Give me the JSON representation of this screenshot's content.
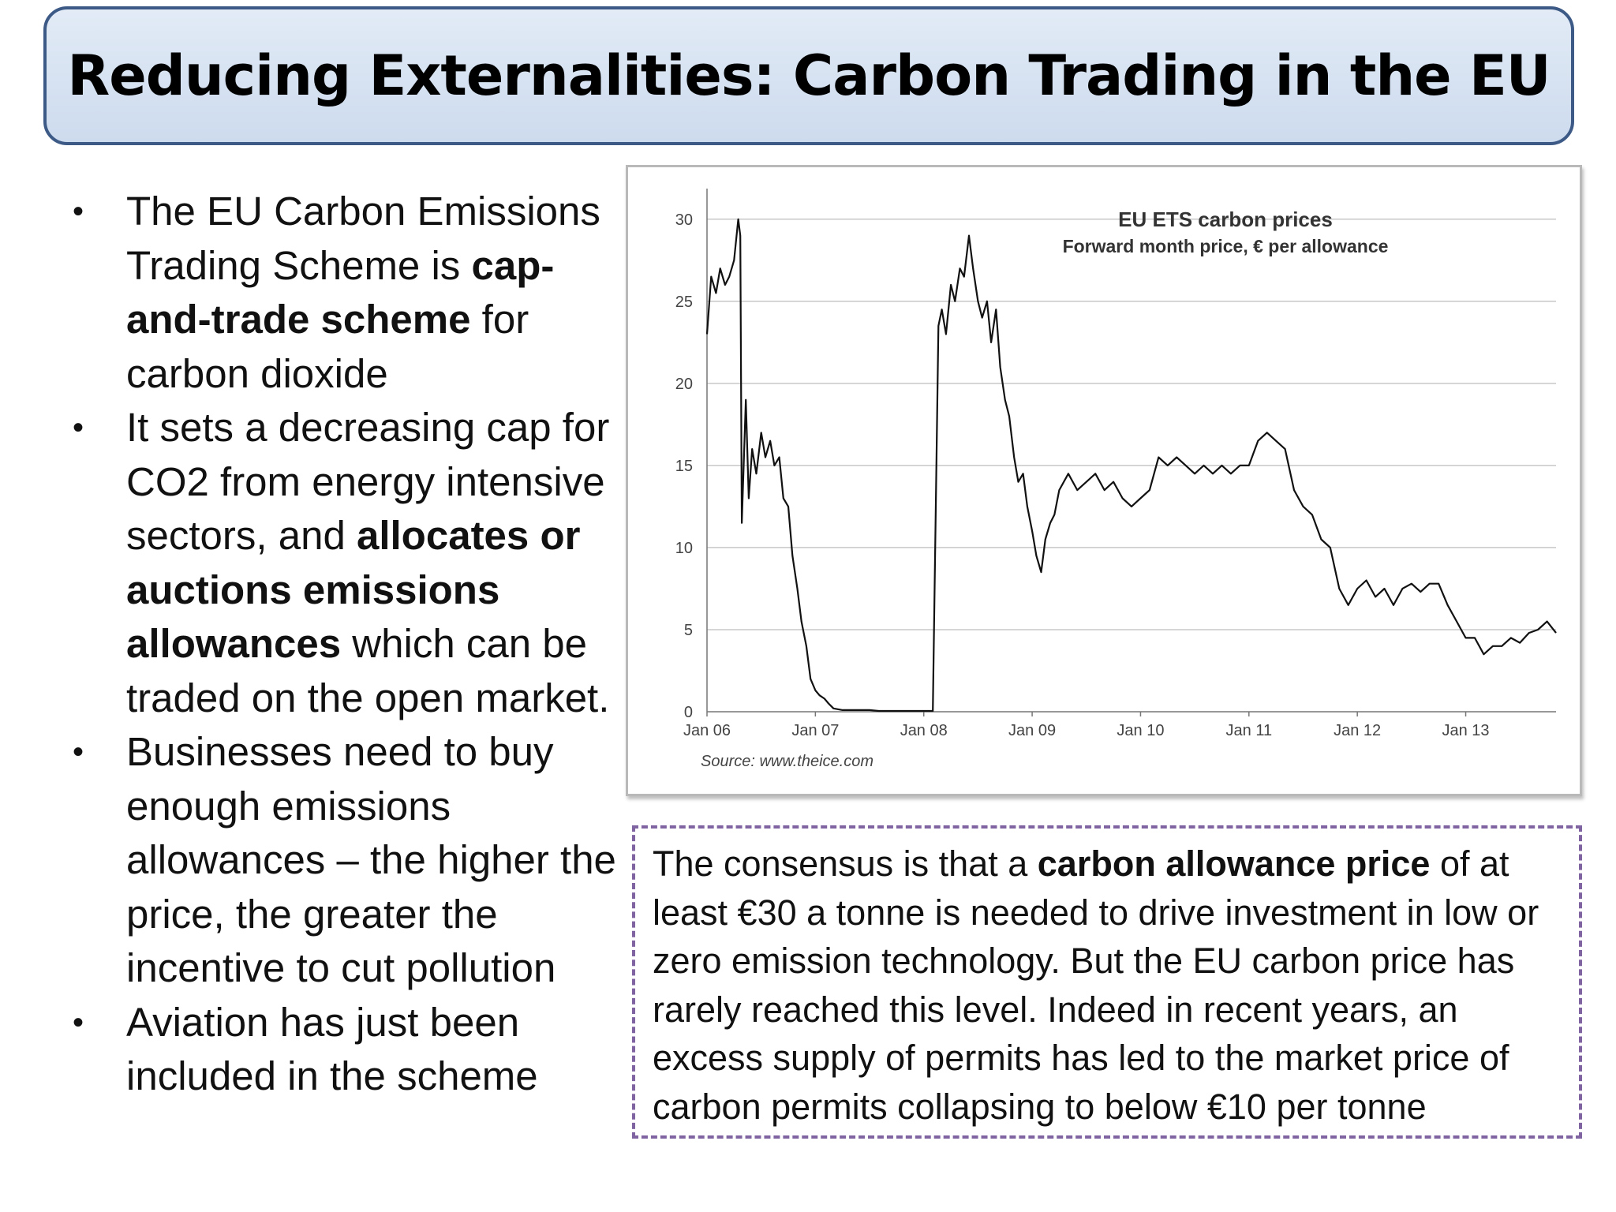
{
  "slide": {
    "title": "Reducing Externalities: Carbon Trading in the EU"
  },
  "bullets": [
    {
      "before": "The EU Carbon Emissions Trading Scheme is ",
      "bold": "cap-and-trade scheme",
      "after": " for carbon dioxide"
    },
    {
      "before": "It sets a decreasing cap for CO2 from energy intensive sectors, and ",
      "bold": "allocates or auctions emissions allowances",
      "after": " which can be traded on the open market."
    },
    {
      "before": "Businesses need to buy enough emissions allowances – the higher the price, the greater the incentive to cut pollution",
      "bold": "",
      "after": ""
    },
    {
      "before": "Aviation has just been included in the scheme",
      "bold": "",
      "after": ""
    }
  ],
  "note": {
    "before": "The consensus is that a ",
    "bold": "carbon allowance price",
    "after": " of at least €30 a tonne is needed to drive investment in low or zero emission technology. But the EU carbon price has rarely reached this level. Indeed in recent years, an excess supply of permits has led to the market price of carbon permits collapsing to below €10 per tonne"
  },
  "chart_data": {
    "type": "line",
    "title": "EU ETS carbon prices",
    "subtitle": "Forward month price, € per allowance",
    "source": "Source: www.theice.com",
    "xlabel": "",
    "ylabel": "",
    "x_ticks": [
      "Jan 06",
      "Jan 07",
      "Jan 08",
      "Jan 09",
      "Jan 10",
      "Jan 11",
      "Jan 12",
      "Jan 13"
    ],
    "y_ticks": [
      0,
      5,
      10,
      15,
      20,
      25,
      30
    ],
    "ylim": [
      0,
      31
    ],
    "xlim": [
      "2006-01",
      "2013-11"
    ],
    "grid": "horizontal",
    "line_color": "#111111",
    "series": [
      {
        "x": [
          "2006-01-01",
          "2006-01-15",
          "2006-02-01",
          "2006-02-15",
          "2006-03-01",
          "2006-03-15",
          "2006-04-01",
          "2006-04-15",
          "2006-04-22",
          "2006-04-27",
          "2006-05-01",
          "2006-05-10",
          "2006-05-20",
          "2006-06-01",
          "2006-06-15",
          "2006-07-01",
          "2006-07-15",
          "2006-08-01",
          "2006-08-15",
          "2006-09-01",
          "2006-09-15",
          "2006-10-01",
          "2006-10-15",
          "2006-11-01",
          "2006-11-15",
          "2006-12-01",
          "2006-12-15",
          "2007-01-01",
          "2007-01-15",
          "2007-02-01",
          "2007-02-15",
          "2007-03-01",
          "2007-04-01",
          "2007-05-01",
          "2007-06-01",
          "2007-07-01",
          "2007-08-01",
          "2007-09-01",
          "2007-10-01",
          "2007-11-01",
          "2007-12-01",
          "2008-01-01",
          "2008-02-01",
          "2008-02-20",
          "2008-03-01",
          "2008-03-15",
          "2008-04-01",
          "2008-04-15",
          "2008-05-01",
          "2008-05-15",
          "2008-06-01",
          "2008-06-15",
          "2008-07-01",
          "2008-07-15",
          "2008-08-01",
          "2008-08-15",
          "2008-09-01",
          "2008-09-15",
          "2008-10-01",
          "2008-10-15",
          "2008-11-01",
          "2008-11-15",
          "2008-12-01",
          "2008-12-15",
          "2009-01-01",
          "2009-01-15",
          "2009-02-01",
          "2009-02-15",
          "2009-03-01",
          "2009-03-15",
          "2009-04-01",
          "2009-05-01",
          "2009-06-01",
          "2009-07-01",
          "2009-08-01",
          "2009-09-01",
          "2009-10-01",
          "2009-11-01",
          "2009-12-01",
          "2010-01-01",
          "2010-02-01",
          "2010-03-01",
          "2010-04-01",
          "2010-05-01",
          "2010-06-01",
          "2010-07-01",
          "2010-08-01",
          "2010-09-01",
          "2010-10-01",
          "2010-11-01",
          "2010-12-01",
          "2011-01-01",
          "2011-02-01",
          "2011-03-01",
          "2011-04-01",
          "2011-05-01",
          "2011-06-01",
          "2011-07-01",
          "2011-08-01",
          "2011-09-01",
          "2011-10-01",
          "2011-11-01",
          "2011-12-01",
          "2012-01-01",
          "2012-02-01",
          "2012-03-01",
          "2012-04-01",
          "2012-05-01",
          "2012-06-01",
          "2012-07-01",
          "2012-08-01",
          "2012-09-01",
          "2012-10-01",
          "2012-11-01",
          "2012-12-01",
          "2013-01-01",
          "2013-02-01",
          "2013-03-01",
          "2013-04-01",
          "2013-05-01",
          "2013-06-01",
          "2013-07-01",
          "2013-08-01",
          "2013-09-01",
          "2013-10-01",
          "2013-11-01"
        ],
        "y": [
          23,
          26.5,
          25.5,
          27,
          26,
          26.5,
          27.5,
          30,
          29,
          11.5,
          14,
          19,
          13,
          16,
          14.5,
          17,
          15.5,
          16.5,
          15,
          15.5,
          13,
          12.5,
          9.5,
          7.5,
          5.5,
          4,
          2,
          1.3,
          1,
          0.8,
          0.5,
          0.2,
          0.1,
          0.1,
          0.1,
          0.1,
          0.05,
          0.05,
          0.05,
          0.05,
          0.05,
          0.05,
          0.05,
          23.5,
          24.5,
          23,
          26,
          25,
          27,
          26.5,
          29,
          27,
          25,
          24,
          25,
          22.5,
          24.5,
          21,
          19,
          18,
          15.5,
          14,
          14.5,
          12.5,
          11,
          9.5,
          8.5,
          10.5,
          11.5,
          12,
          13.5,
          14.5,
          13.5,
          14,
          14.5,
          13.5,
          14,
          13,
          12.5,
          13,
          13.5,
          15.5,
          15,
          15.5,
          15,
          14.5,
          15,
          14.5,
          15,
          14.5,
          15,
          15,
          16.5,
          17,
          16.5,
          16,
          13.5,
          12.5,
          12,
          10.5,
          10,
          7.5,
          6.5,
          7.5,
          8,
          7,
          7.5,
          6.5,
          7.5,
          7.8,
          7.3,
          7.8,
          7.8,
          6.5,
          5.5,
          4.5,
          4.5,
          3.5,
          4,
          4,
          4.5,
          4.2,
          4.8,
          5,
          5.5,
          4.8
        ]
      }
    ]
  }
}
